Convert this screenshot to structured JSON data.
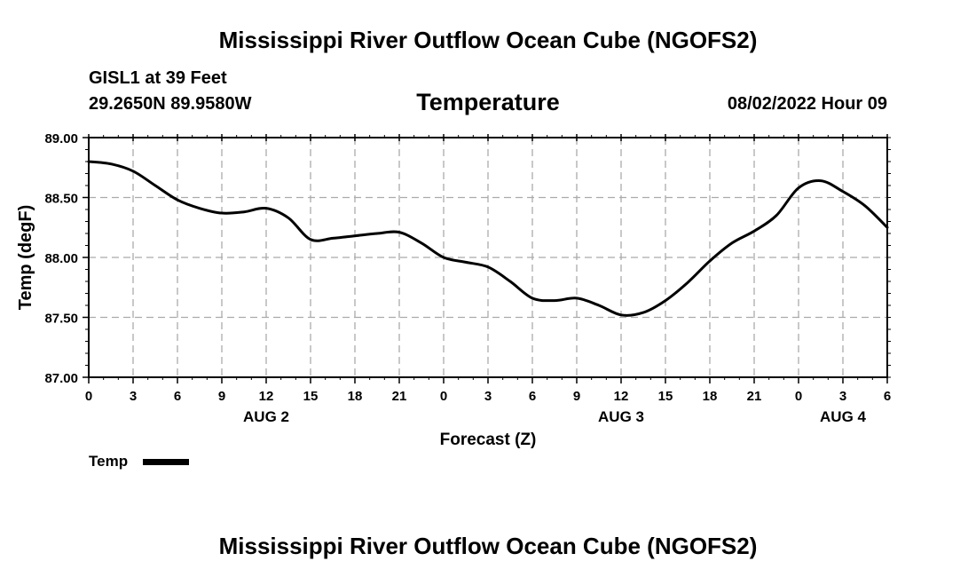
{
  "header": {
    "main_title": "Mississippi River Outflow Ocean Cube (NGOFS2)",
    "station": "GISL1 at 39 Feet",
    "coords": "29.2650N  89.9580W",
    "chart_title": "Temperature",
    "datetime": "08/02/2022 Hour 09"
  },
  "footer": {
    "main_title": "Mississippi River Outflow Ocean Cube (NGOFS2)"
  },
  "chart_data": {
    "type": "line",
    "title": "Temperature",
    "xlabel": "Forecast (Z)",
    "ylabel": "Temp (degF)",
    "ylim": [
      87.0,
      89.0
    ],
    "xlim": [
      0,
      54
    ],
    "grid": true,
    "y_ticks": [
      "87.00",
      "87.50",
      "88.00",
      "88.50",
      "89.00"
    ],
    "y_tick_values": [
      87.0,
      87.5,
      88.0,
      88.5,
      89.0
    ],
    "x_tick_labels": [
      "0",
      "3",
      "6",
      "9",
      "12",
      "15",
      "18",
      "21",
      "0",
      "3",
      "6",
      "9",
      "12",
      "15",
      "18",
      "21",
      "0",
      "3",
      "6"
    ],
    "day_labels": [
      {
        "label": "AUG 2",
        "hour": 12
      },
      {
        "label": "AUG 3",
        "hour": 36
      },
      {
        "label": "AUG 4",
        "hour": 51
      }
    ],
    "legend": {
      "label": "Temp",
      "placement": "bottom-left"
    },
    "series": [
      {
        "name": "Temp",
        "x": [
          0,
          1.5,
          3,
          4.5,
          6,
          7.5,
          9,
          10.5,
          12,
          13.5,
          15,
          16.5,
          18,
          19.5,
          21,
          22.5,
          24,
          25.5,
          27,
          28.5,
          30,
          31.5,
          33,
          34.5,
          36,
          37.5,
          39,
          40.5,
          42,
          43.5,
          45,
          46.5,
          48,
          49.5,
          51,
          52.5,
          54
        ],
        "values": [
          88.8,
          88.78,
          88.72,
          88.6,
          88.48,
          88.41,
          88.37,
          88.38,
          88.41,
          88.33,
          88.15,
          88.16,
          88.18,
          88.2,
          88.21,
          88.12,
          88.0,
          87.96,
          87.92,
          87.8,
          87.66,
          87.64,
          87.66,
          87.6,
          87.52,
          87.54,
          87.64,
          87.79,
          87.97,
          88.12,
          88.22,
          88.35,
          88.58,
          88.64,
          88.55,
          88.43,
          88.25
        ]
      }
    ]
  }
}
